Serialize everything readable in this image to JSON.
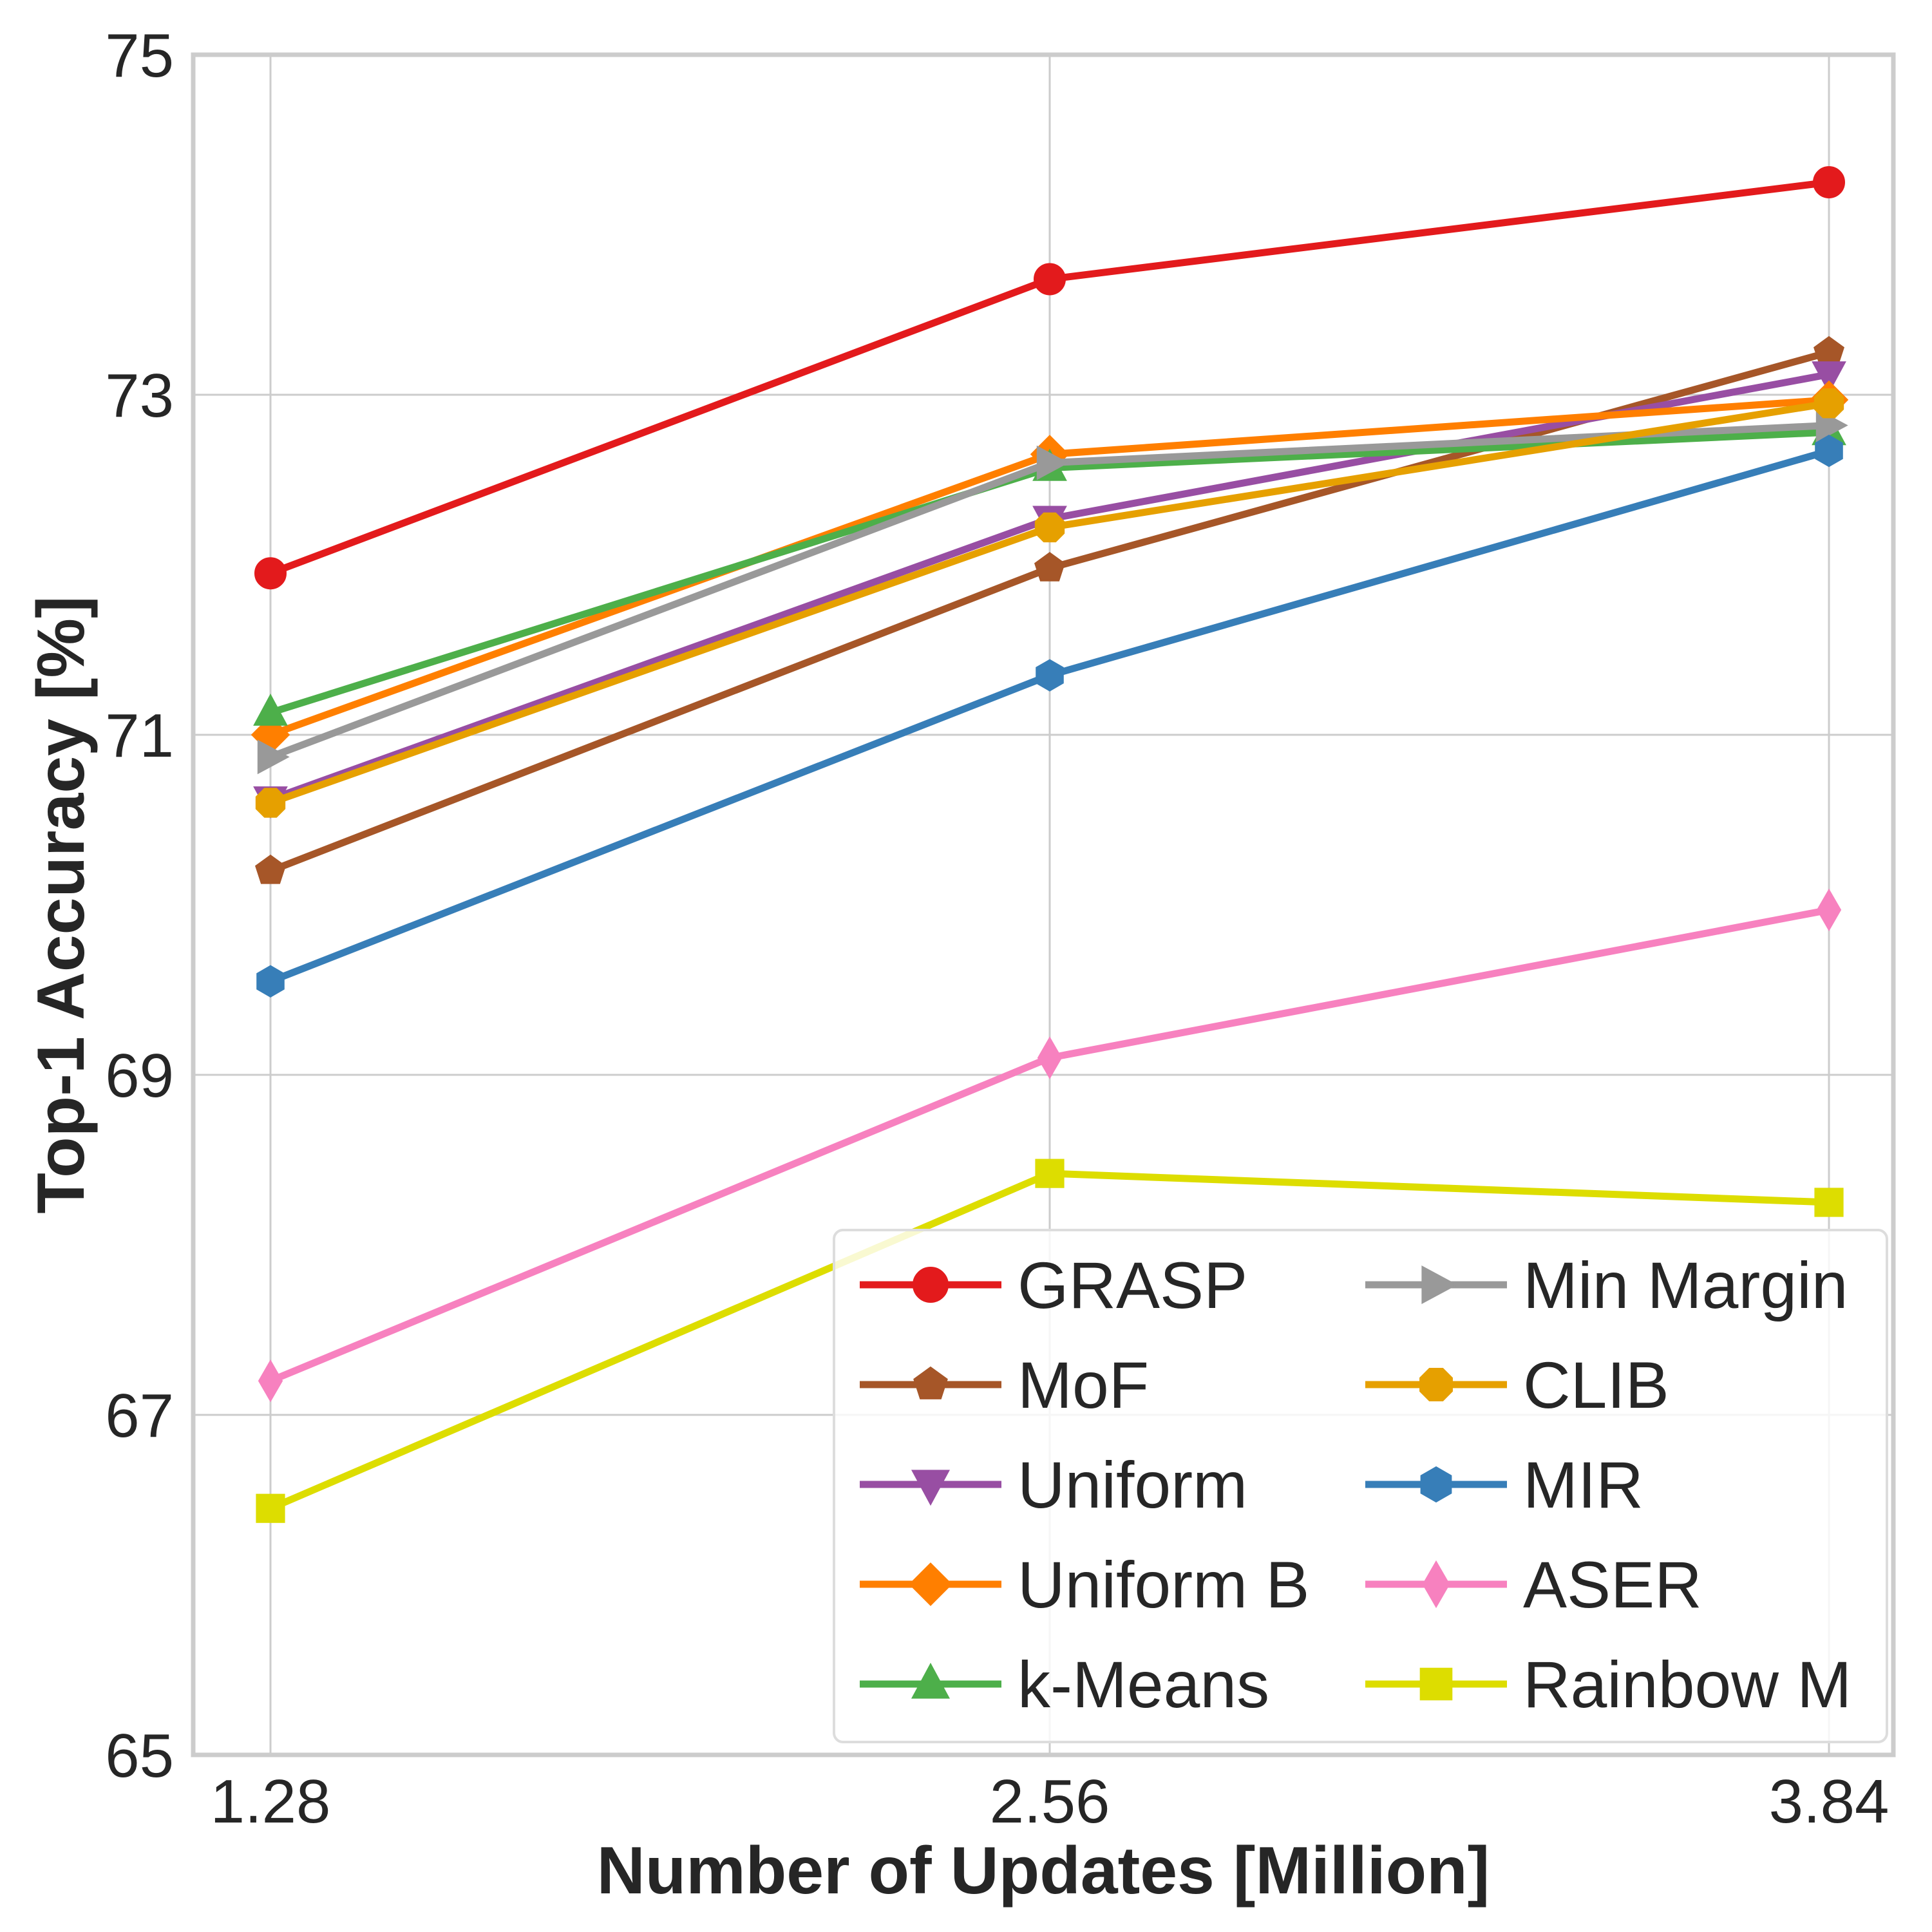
{
  "chart_data": {
    "type": "line",
    "title": "",
    "xlabel": "Number of Updates [Million]",
    "ylabel": "Top-1 Accuracy [%]",
    "x": [
      "1.28",
      "2.56",
      "3.84"
    ],
    "ylim": [
      65,
      75
    ],
    "yticks": [
      "65",
      "67",
      "69",
      "71",
      "73",
      "75"
    ],
    "grid": true,
    "legend": {
      "placement": "lower-right",
      "columns": 2
    },
    "series": [
      {
        "name": "GRASP",
        "color": "#e31a1c",
        "marker": "circle",
        "values": [
          71.95,
          73.68,
          74.25
        ]
      },
      {
        "name": "MoF",
        "color": "#a65628",
        "marker": "pentagon",
        "values": [
          70.2,
          71.98,
          73.25
        ]
      },
      {
        "name": "Uniform",
        "color": "#984ea3",
        "marker": "triangle-down",
        "values": [
          70.62,
          72.27,
          73.12
        ]
      },
      {
        "name": "Uniform B",
        "color": "#ff7f00",
        "marker": "diamond",
        "values": [
          71.0,
          72.65,
          72.97
        ]
      },
      {
        "name": "k-Means",
        "color": "#4daf4a",
        "marker": "triangle-up",
        "values": [
          71.13,
          72.57,
          72.78
        ]
      },
      {
        "name": "Min Margin",
        "color": "#999999",
        "marker": "triangle-right",
        "values": [
          70.87,
          72.6,
          72.82
        ]
      },
      {
        "name": "CLIB",
        "color": "#e6a000",
        "marker": "octagon",
        "values": [
          70.6,
          72.22,
          72.95
        ]
      },
      {
        "name": "MIR",
        "color": "#377eb8",
        "marker": "hexagon",
        "values": [
          69.55,
          71.35,
          72.67
        ]
      },
      {
        "name": "ASER",
        "color": "#f781bf",
        "marker": "thin-diamond",
        "values": [
          67.2,
          69.1,
          69.97
        ]
      },
      {
        "name": "Rainbow M",
        "color": "#dddd00",
        "marker": "square",
        "values": [
          66.45,
          68.42,
          68.25
        ]
      }
    ]
  }
}
